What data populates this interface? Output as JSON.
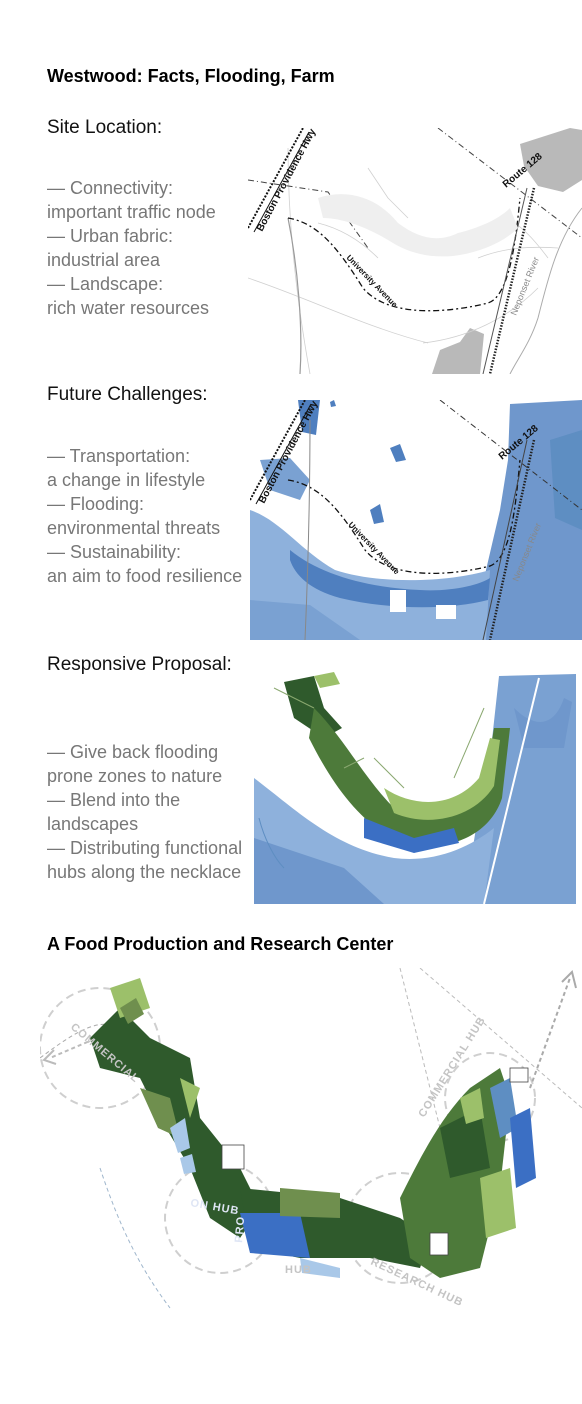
{
  "title": "Westwood: Facts, Flooding, Farm",
  "sections": [
    {
      "heading": "Site Location:",
      "bullets": [
        "— Connectivity:",
        "important traffic node",
        "— Urban fabric:",
        "industrial area",
        "— Landscape:",
        "rich water resources"
      ]
    },
    {
      "heading": "Future Challenges:",
      "bullets": [
        "— Transportation:",
        "a change in lifestyle",
        "— Flooding:",
        "environmental threats",
        "— Sustainability:",
        "an aim to food resilience"
      ]
    },
    {
      "heading": "Responsive Proposal:",
      "bullets": [
        "— Give back flooding",
        "prone zones to nature",
        "— Blend into the",
        "landscapes",
        "— Distributing functional",
        "hubs along the necklace"
      ]
    }
  ],
  "map_labels": {
    "highway": "Boston Providence Hwy",
    "route": "Route 128",
    "avenue": "University Avenue",
    "river": "Neponset River"
  },
  "center_title": "A Food Production and Research Center",
  "hub_labels": {
    "commercial_left": "COMMERCIAL",
    "commercial_right": "COMMERCIAL HUB",
    "production": "PRO",
    "research": "RESEARCH HUB",
    "hub": "HUB",
    "center": "ON HUB"
  },
  "colors": {
    "dark_green": "#2f5a2c",
    "mid_green": "#6f8f4e",
    "light_green": "#9cc06a",
    "blue": "#3b6fc4",
    "water_blue": "#5e8ec2",
    "light_blue": "#a9c8e8",
    "gray": "#b5b5b5"
  }
}
